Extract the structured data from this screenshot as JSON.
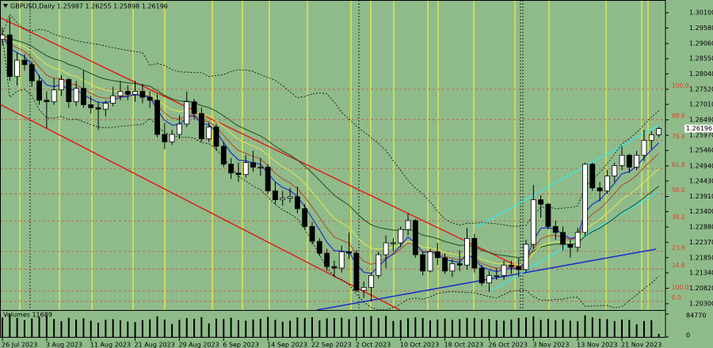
{
  "chart_data": {
    "type": "candlestick",
    "title": "GBPUSD,Daily  1.25987 1.26255 1.25898 1.26196",
    "volume_title": "Volumes 11689",
    "categories": [
      "26 Jul 2023",
      null,
      null,
      null,
      null,
      null,
      "3 Aug 2023",
      null,
      null,
      null,
      null,
      null,
      "11 Aug 2023",
      null,
      null,
      null,
      null,
      null,
      "21 Aug 2023",
      null,
      null,
      null,
      null,
      null,
      "29 Aug 2023",
      null,
      null,
      null,
      null,
      null,
      "6 Sep 2023",
      null,
      null,
      null,
      null,
      null,
      "14 Sep 2023",
      null,
      null,
      null,
      null,
      null,
      "22 Sep 2023",
      null,
      null,
      null,
      null,
      null,
      "2 Oct 2023",
      null,
      null,
      null,
      null,
      null,
      "10 Oct 2023",
      null,
      null,
      null,
      null,
      null,
      "18 Oct 2023",
      null,
      null,
      null,
      null,
      null,
      "26 Oct 2023",
      null,
      null,
      null,
      null,
      null,
      "3 Nov 2023",
      null,
      null,
      null,
      null,
      null,
      "13 Nov 2023",
      null,
      null,
      null,
      null,
      null,
      "21 Nov 2023",
      null,
      null,
      null,
      null,
      null
    ],
    "open": [
      1.292,
      1.2935,
      1.2795,
      1.285,
      1.2835,
      1.278,
      1.2715,
      1.271,
      1.275,
      1.2785,
      1.271,
      1.2755,
      1.27,
      1.269,
      1.2685,
      1.2705,
      1.273,
      1.2745,
      1.2735,
      1.2745,
      1.2725,
      1.2715,
      1.26,
      1.2575,
      1.26,
      1.2635,
      1.271,
      1.267,
      1.2585,
      1.2625,
      1.256,
      1.25,
      1.247,
      1.2465,
      1.2505,
      1.249,
      1.249,
      1.241,
      1.238,
      1.2385,
      1.239,
      1.235,
      1.229,
      1.224,
      1.22,
      1.2155,
      1.215,
      1.2205,
      1.22,
      1.2075,
      1.2085,
      1.2125,
      1.2195,
      1.2235,
      1.2235,
      1.228,
      1.231,
      1.2195,
      1.214,
      1.2205,
      1.2185,
      1.214,
      1.2165,
      1.216,
      1.225,
      1.215,
      1.21,
      1.2125,
      1.2125,
      1.216,
      1.2155,
      1.2145,
      1.223,
      1.238,
      1.2365,
      1.229,
      1.227,
      1.223,
      1.222,
      1.227,
      1.25,
      1.242,
      1.241,
      1.246,
      1.2495,
      1.253,
      1.249,
      1.253,
      1.258,
      1.25987
    ],
    "high": [
      1.296,
      1.2995,
      1.2875,
      1.287,
      1.2845,
      1.28,
      1.2745,
      1.279,
      1.28,
      1.279,
      1.278,
      1.2815,
      1.273,
      1.271,
      1.2715,
      1.276,
      1.278,
      1.2765,
      1.278,
      1.277,
      1.2745,
      1.2735,
      1.264,
      1.2615,
      1.2665,
      1.2745,
      1.272,
      1.269,
      1.264,
      1.2635,
      1.2575,
      1.252,
      1.2505,
      1.253,
      1.2545,
      1.252,
      1.25,
      1.244,
      1.241,
      1.242,
      1.2425,
      1.2365,
      1.2305,
      1.225,
      1.2215,
      1.2175,
      1.2225,
      1.227,
      1.221,
      1.2105,
      1.2135,
      1.2205,
      1.226,
      1.225,
      1.229,
      1.2335,
      1.2315,
      1.2205,
      1.2215,
      1.2235,
      1.22,
      1.218,
      1.221,
      1.2285,
      1.2265,
      1.216,
      1.214,
      1.215,
      1.2175,
      1.2175,
      1.2185,
      1.2245,
      1.243,
      1.2395,
      1.237,
      1.231,
      1.229,
      1.2245,
      1.2285,
      1.2505,
      1.2505,
      1.244,
      1.248,
      1.2505,
      1.256,
      1.2535,
      1.2545,
      1.2615,
      1.261,
      1.26255
    ],
    "low": [
      1.29,
      1.278,
      1.2765,
      1.2815,
      1.276,
      1.27,
      1.262,
      1.27,
      1.273,
      1.269,
      1.2695,
      1.269,
      1.267,
      1.2615,
      1.266,
      1.2695,
      1.2715,
      1.2715,
      1.271,
      1.2705,
      1.269,
      1.259,
      1.255,
      1.2565,
      1.2585,
      1.2625,
      1.265,
      1.2575,
      1.2575,
      1.2545,
      1.249,
      1.245,
      1.244,
      1.2455,
      1.2475,
      1.246,
      1.24,
      1.2365,
      1.236,
      1.237,
      1.2335,
      1.228,
      1.223,
      1.219,
      1.214,
      1.212,
      1.2135,
      1.218,
      1.207,
      1.205,
      1.2037,
      1.2115,
      1.215,
      1.2205,
      1.222,
      1.226,
      1.2185,
      1.2125,
      1.2135,
      1.216,
      1.213,
      1.212,
      1.214,
      1.2145,
      1.2135,
      1.209,
      1.207,
      1.211,
      1.211,
      1.213,
      1.212,
      1.2135,
      1.2215,
      1.232,
      1.228,
      1.2245,
      1.221,
      1.2185,
      1.2205,
      1.226,
      1.241,
      1.2375,
      1.24,
      1.244,
      1.248,
      1.247,
      1.248,
      1.251,
      1.255,
      1.25898
    ],
    "close": [
      1.2935,
      1.2795,
      1.285,
      1.2835,
      1.278,
      1.2715,
      1.271,
      1.275,
      1.2785,
      1.271,
      1.2755,
      1.27,
      1.269,
      1.2685,
      1.2705,
      1.273,
      1.2745,
      1.2735,
      1.2745,
      1.2725,
      1.2715,
      1.26,
      1.2575,
      1.26,
      1.2635,
      1.271,
      1.267,
      1.2585,
      1.2625,
      1.256,
      1.25,
      1.247,
      1.2465,
      1.2505,
      1.249,
      1.249,
      1.241,
      1.238,
      1.2385,
      1.239,
      1.235,
      1.229,
      1.224,
      1.22,
      1.2155,
      1.215,
      1.2205,
      1.22,
      1.2075,
      1.2085,
      1.2125,
      1.2195,
      1.2235,
      1.2235,
      1.228,
      1.231,
      1.2195,
      1.214,
      1.2205,
      1.2185,
      1.214,
      1.2165,
      1.216,
      1.225,
      1.215,
      1.21,
      1.2125,
      1.2125,
      1.216,
      1.2155,
      1.2145,
      1.223,
      1.238,
      1.2365,
      1.229,
      1.227,
      1.223,
      1.222,
      1.227,
      1.25,
      1.242,
      1.241,
      1.246,
      1.2495,
      1.253,
      1.249,
      1.253,
      1.258,
      1.2599,
      1.26196
    ],
    "volume": [
      72000,
      84770,
      70500,
      62000,
      68000,
      74000,
      79000,
      66000,
      58000,
      71000,
      64000,
      69000,
      60000,
      52000,
      63000,
      66000,
      61000,
      57000,
      55000,
      62000,
      65000,
      76000,
      64000,
      48000,
      63000,
      70000,
      67000,
      73000,
      50000,
      68000,
      66000,
      71000,
      62000,
      60000,
      64000,
      67000,
      74000,
      63000,
      56000,
      60000,
      72000,
      70000,
      73000,
      61000,
      69000,
      70000,
      71000,
      66000,
      75000,
      73000,
      77000,
      70000,
      78000,
      59000,
      62000,
      69000,
      72000,
      70000,
      61000,
      64000,
      68000,
      63000,
      66000,
      71000,
      70000,
      65000,
      67000,
      62000,
      60000,
      64000,
      70000,
      72000,
      76000,
      63000,
      67000,
      61000,
      65000,
      60000,
      58000,
      80000,
      72000,
      68000,
      66000,
      58000,
      64000,
      63000,
      47000,
      59000,
      62000,
      11689
    ],
    "colors": {
      "up": "#ffffff",
      "down": "#000000",
      "wick": "#000000",
      "volume": "#000000"
    },
    "ylim": [
      1.20087,
      1.30526
    ],
    "yticks": [
      {
        "value": 1.301,
        "label": "1.30100"
      },
      {
        "value": 1.2958,
        "label": "1.29580"
      },
      {
        "value": 1.2906,
        "label": "1.29060"
      },
      {
        "value": 1.2855,
        "label": "1.28550"
      },
      {
        "value": 1.2804,
        "label": "1.28040"
      },
      {
        "value": 1.2752,
        "label": "1.27520"
      },
      {
        "value": 1.2701,
        "label": "1.27010"
      },
      {
        "value": 1.2649,
        "label": "1.26490"
      },
      {
        "value": 1.2597,
        "label": "1.25970"
      },
      {
        "value": 1.2546,
        "label": "1.25460"
      },
      {
        "value": 1.2494,
        "label": "1.24940"
      },
      {
        "value": 1.2443,
        "label": "1.24430"
      },
      {
        "value": 1.2391,
        "label": "1.23910"
      },
      {
        "value": 1.234,
        "label": "1.23400"
      },
      {
        "value": 1.2288,
        "label": "1.22880"
      },
      {
        "value": 1.2237,
        "label": "1.22370"
      },
      {
        "value": 1.2185,
        "label": "1.21850"
      },
      {
        "value": 1.2134,
        "label": "1.21340"
      },
      {
        "value": 1.2082,
        "label": "1.20820"
      },
      {
        "value": 1.203,
        "label": "1.20300"
      }
    ],
    "current_price": {
      "value": 1.26196,
      "label": "1.26196"
    },
    "fib_levels": [
      {
        "value": 1.2752,
        "label": "100.0"
      },
      {
        "value": 1.265,
        "label": "88.6"
      },
      {
        "value": 1.2581,
        "label": "76.4"
      },
      {
        "value": 1.2485,
        "label": "61.8"
      },
      {
        "value": 1.24,
        "label": "50.0"
      },
      {
        "value": 1.2309,
        "label": "38.2"
      },
      {
        "value": 1.2206,
        "label": "23.6"
      },
      {
        "value": 1.2147,
        "label": "14.6"
      },
      {
        "value": 1.2073,
        "label": "100.0"
      },
      {
        "value": 1.2038,
        "label": "0.0"
      }
    ],
    "volume_ylim": [
      0,
      84770
    ],
    "volume_yticks": [
      0,
      84770
    ]
  }
}
